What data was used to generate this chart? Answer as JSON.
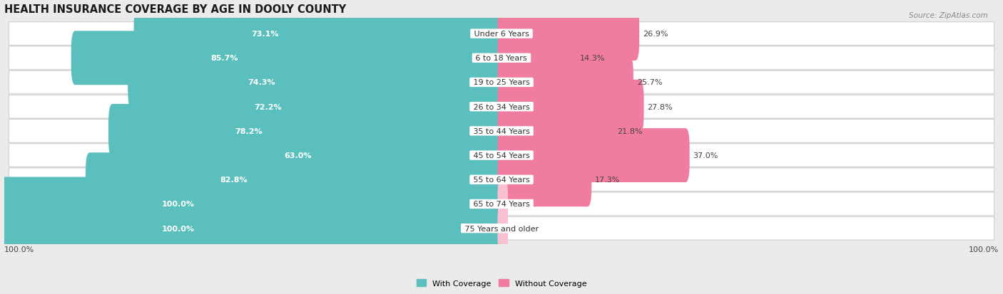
{
  "title": "HEALTH INSURANCE COVERAGE BY AGE IN DOOLY COUNTY",
  "source": "Source: ZipAtlas.com",
  "categories": [
    "Under 6 Years",
    "6 to 18 Years",
    "19 to 25 Years",
    "26 to 34 Years",
    "35 to 44 Years",
    "45 to 54 Years",
    "55 to 64 Years",
    "65 to 74 Years",
    "75 Years and older"
  ],
  "with_coverage": [
    73.1,
    85.7,
    74.3,
    72.2,
    78.2,
    63.0,
    82.8,
    100.0,
    100.0
  ],
  "without_coverage": [
    26.9,
    14.3,
    25.7,
    27.8,
    21.8,
    37.0,
    17.3,
    0.0,
    0.0
  ],
  "color_with": "#5BBFBE",
  "color_without": "#F07CA0",
  "color_without_light": "#F9C0D0",
  "bg_color": "#EBEBEB",
  "row_bg_color": "#F5F5F5",
  "title_fontsize": 10.5,
  "label_fontsize": 8.0,
  "cat_fontsize": 8.0,
  "bar_height": 0.62,
  "legend_with": "With Coverage",
  "legend_without": "Without Coverage"
}
